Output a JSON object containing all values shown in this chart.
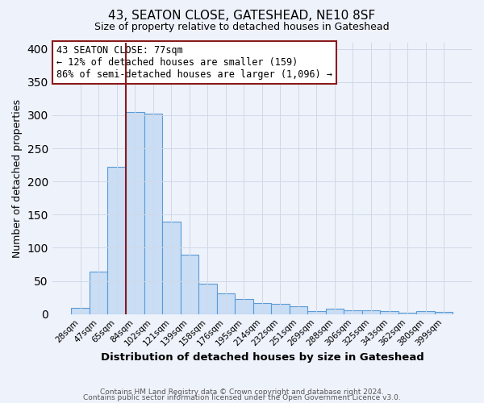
{
  "title": "43, SEATON CLOSE, GATESHEAD, NE10 8SF",
  "subtitle": "Size of property relative to detached houses in Gateshead",
  "xlabel": "Distribution of detached houses by size in Gateshead",
  "ylabel": "Number of detached properties",
  "bin_labels": [
    "28sqm",
    "47sqm",
    "65sqm",
    "84sqm",
    "102sqm",
    "121sqm",
    "139sqm",
    "158sqm",
    "176sqm",
    "195sqm",
    "214sqm",
    "232sqm",
    "251sqm",
    "269sqm",
    "288sqm",
    "306sqm",
    "325sqm",
    "343sqm",
    "362sqm",
    "380sqm",
    "399sqm"
  ],
  "bar_values": [
    10,
    64,
    222,
    305,
    302,
    140,
    90,
    46,
    31,
    23,
    17,
    15,
    12,
    5,
    8,
    6,
    6,
    5,
    2,
    4,
    3
  ],
  "bar_color": "#c9ddf5",
  "bar_edge_color": "#5b9bd5",
  "vline_color": "#8b1a1a",
  "vline_x": 2.5,
  "annotation_line1": "43 SEATON CLOSE: 77sqm",
  "annotation_line2": "← 12% of detached houses are smaller (159)",
  "annotation_line3": "86% of semi-detached houses are larger (1,096) →",
  "annotation_box_facecolor": "#ffffff",
  "annotation_box_edgecolor": "#8b1a1a",
  "ylim": [
    0,
    410
  ],
  "yticks": [
    0,
    50,
    100,
    150,
    200,
    250,
    300,
    350,
    400
  ],
  "footnote_line1": "Contains HM Land Registry data © Crown copyright and database right 2024.",
  "footnote_line2": "Contains public sector information licensed under the Open Government Licence v3.0.",
  "background_color": "#eef2fb",
  "plot_bg_color": "#eef2fb",
  "grid_color": "#d0d8e8"
}
